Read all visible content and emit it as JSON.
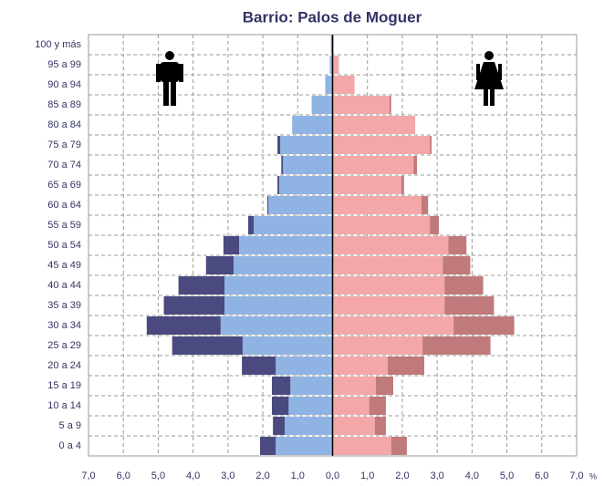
{
  "chart_data": {
    "type": "pyramid",
    "title": "Barrio: Palos de Moguer",
    "categories": [
      "0 a 4",
      "5 a 9",
      "10 a 14",
      "15 a 19",
      "20 a 24",
      "25 a 29",
      "30 a 34",
      "35 a 39",
      "40 a 44",
      "45 a 49",
      "50 a 54",
      "55 a 59",
      "60 a 64",
      "65 a 69",
      "70 a 74",
      "75 a 79",
      "80 a 84",
      "85 a 89",
      "90 a 94",
      "95 a 99",
      "100 y más"
    ],
    "series": [
      {
        "side": "left",
        "color": "#8fb4e3",
        "values": [
          1.63,
          1.37,
          1.26,
          1.21,
          1.63,
          2.58,
          3.21,
          3.1,
          3.1,
          2.84,
          2.68,
          2.26,
          1.84,
          1.53,
          1.42,
          1.5,
          1.16,
          0.6,
          0.21,
          0.08,
          0.05
        ]
      },
      {
        "side": "left",
        "color": "#4a4a80",
        "values": [
          0.45,
          0.34,
          0.48,
          0.53,
          0.97,
          2.02,
          2.12,
          1.74,
          1.32,
          0.79,
          0.45,
          0.16,
          0.03,
          0.05,
          0.05,
          0.08,
          0,
          0,
          0,
          0,
          0
        ]
      },
      {
        "side": "right",
        "color": "#f4a7a9",
        "values": [
          1.68,
          1.21,
          1.05,
          1.24,
          1.58,
          2.58,
          3.47,
          3.21,
          3.21,
          3.16,
          3.32,
          2.79,
          2.55,
          1.97,
          2.32,
          2.79,
          2.37,
          1.63,
          0.63,
          0.18,
          0.03
        ]
      },
      {
        "side": "right",
        "color": "#c07a7c",
        "values": [
          0.45,
          0.32,
          0.48,
          0.5,
          1.05,
          1.95,
          1.74,
          1.42,
          1.11,
          0.79,
          0.52,
          0.26,
          0.19,
          0.08,
          0.1,
          0.05,
          0,
          0.05,
          0,
          0,
          0
        ]
      }
    ],
    "xlim": [
      -7,
      7
    ],
    "xticks": [
      {
        "value": -7,
        "label": "7,0"
      },
      {
        "value": -6,
        "label": "6,0"
      },
      {
        "value": -5,
        "label": "5,0"
      },
      {
        "value": -4,
        "label": "4,0"
      },
      {
        "value": -3,
        "label": "3,0"
      },
      {
        "value": -2,
        "label": "2,0"
      },
      {
        "value": -1,
        "label": "1,0"
      },
      {
        "value": 0,
        "label": "0,0"
      },
      {
        "value": 1,
        "label": "1,0"
      },
      {
        "value": 2,
        "label": "2,0"
      },
      {
        "value": 3,
        "label": "3,0"
      },
      {
        "value": 4,
        "label": "4,0"
      },
      {
        "value": 5,
        "label": "5,0"
      },
      {
        "value": 6,
        "label": "6,0"
      },
      {
        "value": 7,
        "label": "7,0"
      }
    ],
    "x_unit": "%",
    "grid": true
  }
}
